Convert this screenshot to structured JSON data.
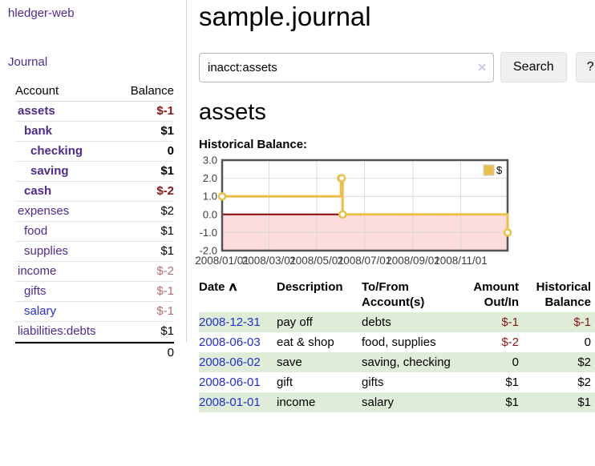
{
  "app": {
    "brand": "hledger-web",
    "nav_journal": "Journal"
  },
  "sidebar": {
    "header": {
      "account": "Account",
      "balance": "Balance"
    },
    "accounts": [
      {
        "name": "assets",
        "balance": "$-1"
      },
      {
        "name": "bank",
        "balance": "$1"
      },
      {
        "name": "checking",
        "balance": "0"
      },
      {
        "name": "saving",
        "balance": "$1"
      },
      {
        "name": "cash",
        "balance": "$-2"
      },
      {
        "name": "expenses",
        "balance": "$2"
      },
      {
        "name": "food",
        "balance": "$1"
      },
      {
        "name": "supplies",
        "balance": "$1"
      },
      {
        "name": "income",
        "balance": "$-2"
      },
      {
        "name": "gifts",
        "balance": "$-1"
      },
      {
        "name": "salary",
        "balance": "$-1"
      },
      {
        "name": "liabilities:debts",
        "balance": "$1"
      }
    ],
    "total": "0"
  },
  "main": {
    "title": "sample.journal",
    "search": {
      "query": "inacct:assets",
      "clear_icon": "✕",
      "search_label": "Search",
      "help_label": "?"
    },
    "account_heading": "assets",
    "chart_heading": "Historical Balance:"
  },
  "chart_data": {
    "type": "line",
    "step": true,
    "title": "Historical Balance",
    "series": [
      {
        "name": "$",
        "points": [
          [
            "2008-01-01",
            1
          ],
          [
            "2008-06-01",
            2
          ],
          [
            "2008-06-02",
            2
          ],
          [
            "2008-06-03",
            0
          ],
          [
            "2008-12-31",
            -1
          ]
        ]
      }
    ],
    "x_range": [
      "2008-01-01",
      "2008-12-31"
    ],
    "ylim": [
      -2,
      3
    ],
    "yticks": [
      3,
      2,
      1,
      0,
      -1,
      -2
    ],
    "ytick_labels": [
      "3.0",
      "2.0",
      "1.0",
      "0.0",
      "-1.0",
      "-2.0"
    ],
    "xticks": [
      {
        "date": "2008-01-01",
        "label": "2008/01/01"
      },
      {
        "date": "2008-03-01",
        "label": "2008/03/01"
      },
      {
        "date": "2008-05-01",
        "label": "2008/05/01"
      },
      {
        "date": "2008-07-01",
        "label": "2008/07/01"
      },
      {
        "date": "2008-09-01",
        "label": "2008/09/01"
      },
      {
        "date": "2008-11-01",
        "label": "2008/11/01"
      }
    ],
    "legend": {
      "label": "$",
      "position": "top-right"
    },
    "grid": true,
    "colors": {
      "series": "#e9c04a",
      "negative_region": "#fcdcdc",
      "zero_line": "#8b0000",
      "grid": "#d9d9d9",
      "border": "#545454",
      "tick_text": "#3c3c3c"
    }
  },
  "register_table": {
    "headers": {
      "date": "Date",
      "sort_caret": "∧",
      "description": "Description",
      "tofrom_1": "To/From",
      "tofrom_2": "Account(s)",
      "amount_1": "Amount",
      "amount_2": "Out/In",
      "hist_1": "Historical",
      "hist_2": "Balance"
    },
    "rows": [
      {
        "date": "2008-12-31",
        "description": "pay off",
        "accounts": "debts",
        "amount": "$-1",
        "balance": "$-1"
      },
      {
        "date": "2008-06-03",
        "description": "eat & shop",
        "accounts": "food, supplies",
        "amount": "$-2",
        "balance": "0"
      },
      {
        "date": "2008-06-02",
        "description": "save",
        "accounts": "saving, checking",
        "amount": "0",
        "balance": "$2"
      },
      {
        "date": "2008-06-01",
        "description": "gift",
        "accounts": "gifts",
        "amount": "$1",
        "balance": "$2"
      },
      {
        "date": "2008-01-01",
        "description": "income",
        "accounts": "salary",
        "amount": "$1",
        "balance": "$1"
      }
    ]
  },
  "colors": {
    "link_purple": "#4f2a8e",
    "link_blue": "#2230d2",
    "negative_strong": "#8b1717",
    "negative_soft": "#b56e6e",
    "row_green": "#deecd8"
  }
}
